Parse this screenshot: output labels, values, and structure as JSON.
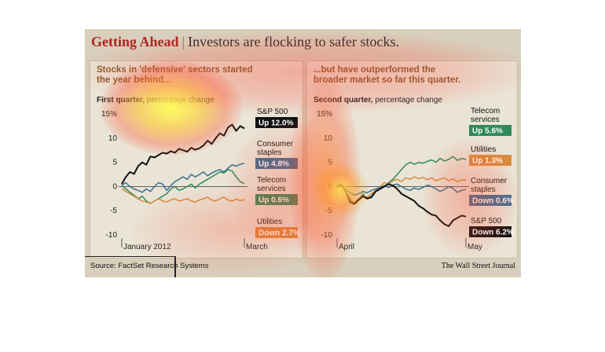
{
  "header": {
    "kicker": "Getting Ahead",
    "separator": "|",
    "headline": "Investors are flocking to safer stocks."
  },
  "footer": {
    "source": "Source: FactSet Research Systems",
    "publisher": "The Wall Street Journal"
  },
  "colors": {
    "sp500": "#111111",
    "consumer_staples": "#3b6e94",
    "telecom": "#2f8a5a",
    "utilities": "#d98a3c"
  },
  "chart_data": [
    {
      "type": "line",
      "subtitle": "Stocks in 'defensive' sectors started the year behind...",
      "measure_bold": "First quarter,",
      "measure_rest": " percentage change",
      "ylim": [
        -10,
        15
      ],
      "yticks": [
        "15%",
        "10",
        "5",
        "0",
        "-5",
        "-10"
      ],
      "xticks": [
        "January 2012",
        "March"
      ],
      "x": [
        0,
        2,
        4,
        6,
        8,
        10,
        12,
        14,
        16,
        18,
        20,
        22,
        24,
        26,
        28,
        30,
        32,
        34,
        36,
        38,
        40,
        42,
        44,
        46,
        48,
        50,
        52,
        54,
        56,
        58,
        60
      ],
      "series": [
        {
          "name": "S&P 500",
          "label": "Up 12.0%",
          "color": "#111111",
          "values": [
            0.5,
            2.0,
            3.0,
            2.6,
            4.2,
            5.0,
            4.5,
            6.2,
            6.0,
            6.5,
            7.0,
            6.8,
            7.3,
            7.0,
            7.8,
            7.5,
            7.2,
            8.0,
            7.6,
            7.9,
            8.5,
            9.5,
            8.8,
            10.0,
            11.0,
            10.5,
            12.2,
            12.8,
            11.5,
            12.5,
            12.0
          ]
        },
        {
          "name": "Consumer staples",
          "label": "Up 4.8%",
          "color": "#3b6e94",
          "values": [
            0.3,
            0.8,
            0.0,
            -0.5,
            -0.8,
            -1.2,
            -0.5,
            -1.0,
            0.0,
            0.8,
            0.5,
            -0.8,
            0.2,
            1.0,
            1.5,
            2.0,
            1.5,
            2.5,
            2.0,
            2.5,
            3.0,
            2.2,
            2.8,
            3.2,
            3.5,
            3.0,
            3.8,
            4.5,
            4.2,
            4.6,
            4.8
          ]
        },
        {
          "name": "Telecom services",
          "label": "Up 0.6%",
          "color": "#2f8a5a",
          "values": [
            0.2,
            -0.5,
            -1.2,
            -1.8,
            -2.5,
            -2.0,
            -3.0,
            -3.5,
            -3.0,
            -2.5,
            -2.0,
            -1.5,
            -0.5,
            0.0,
            -0.8,
            -0.5,
            0.0,
            0.5,
            -0.3,
            0.5,
            1.0,
            1.5,
            2.0,
            2.5,
            3.0,
            2.8,
            3.5,
            3.2,
            2.0,
            1.0,
            0.6
          ]
        },
        {
          "name": "Utilities",
          "label": "Down 2.7%",
          "color": "#d98a3c",
          "values": [
            -0.5,
            -1.0,
            -1.5,
            -2.0,
            -2.5,
            -3.0,
            -3.2,
            -3.5,
            -3.0,
            -2.5,
            -3.0,
            -3.2,
            -2.8,
            -2.5,
            -3.0,
            -2.8,
            -2.5,
            -3.0,
            -3.2,
            -2.8,
            -2.5,
            -2.2,
            -2.8,
            -3.0,
            -2.5,
            -2.2,
            -2.8,
            -3.0,
            -2.6,
            -2.9,
            -2.7
          ]
        }
      ],
      "legend_order": [
        "S&P 500",
        "Consumer staples",
        "Telecom services",
        "Utilities"
      ]
    },
    {
      "type": "line",
      "subtitle": "...but have outperformed the broader market so far this quarter.",
      "measure_bold": "Second quarter,",
      "measure_rest": " percentage change",
      "ylim": [
        -10,
        15
      ],
      "yticks": [
        "15%",
        "10",
        "5",
        "0",
        "-5",
        "-10"
      ],
      "xticks": [
        "April",
        "May"
      ],
      "x": [
        0,
        2,
        4,
        6,
        8,
        10,
        12,
        14,
        16,
        18,
        20,
        22,
        24,
        26,
        28,
        30,
        32,
        34,
        36,
        38,
        40,
        42,
        44,
        46,
        48,
        50,
        52,
        54,
        56,
        58,
        60
      ],
      "series": [
        {
          "name": "Telecom services",
          "label": "Up 5.6%",
          "color": "#2f8a5a",
          "values": [
            0.2,
            0.5,
            -1.0,
            -2.5,
            -3.5,
            -2.8,
            -1.5,
            -2.5,
            -2.0,
            -0.8,
            -0.5,
            0.0,
            0.8,
            1.5,
            2.5,
            3.5,
            4.5,
            5.0,
            4.6,
            5.0,
            4.8,
            5.2,
            5.5,
            5.0,
            5.8,
            5.3,
            5.6,
            6.2,
            5.4,
            5.8,
            5.6
          ]
        },
        {
          "name": "Utilities",
          "label": "Up 1.3%",
          "color": "#d98a3c",
          "values": [
            0.0,
            0.4,
            -0.8,
            -2.8,
            -3.3,
            -2.5,
            -1.8,
            -2.2,
            -1.5,
            -0.8,
            0.0,
            0.8,
            0.5,
            1.2,
            1.5,
            1.0,
            1.8,
            1.5,
            2.0,
            1.6,
            1.9,
            1.4,
            1.8,
            1.2,
            1.5,
            1.8,
            1.2,
            1.6,
            1.0,
            1.4,
            1.3
          ]
        },
        {
          "name": "Consumer staples",
          "label": "Down 0.6%",
          "color": "#3b6e94",
          "values": [
            0.3,
            0.0,
            -0.5,
            -1.2,
            -1.8,
            -1.5,
            -1.0,
            -1.3,
            -0.8,
            -0.5,
            -0.2,
            0.2,
            -0.2,
            0.3,
            0.5,
            0.0,
            -0.5,
            -0.8,
            -0.3,
            -0.6,
            -0.2,
            0.3,
            0.0,
            -0.5,
            -1.0,
            -0.6,
            0.0,
            -0.4,
            -1.2,
            -0.8,
            -0.6
          ]
        },
        {
          "name": "S&P 500",
          "label": "Down 6.2%",
          "color": "#111111",
          "values": [
            0.0,
            0.3,
            -1.0,
            -3.2,
            -3.6,
            -2.8,
            -2.0,
            -2.5,
            -2.2,
            -1.0,
            -0.5,
            0.0,
            0.5,
            0.2,
            -0.5,
            -1.5,
            -2.0,
            -2.5,
            -3.0,
            -4.0,
            -4.5,
            -5.2,
            -5.8,
            -6.0,
            -7.0,
            -7.8,
            -8.2,
            -7.0,
            -6.5,
            -6.0,
            -6.2
          ]
        }
      ],
      "legend_order": [
        "Telecom services",
        "Utilities",
        "Consumer staples",
        "S&P 500"
      ]
    }
  ]
}
